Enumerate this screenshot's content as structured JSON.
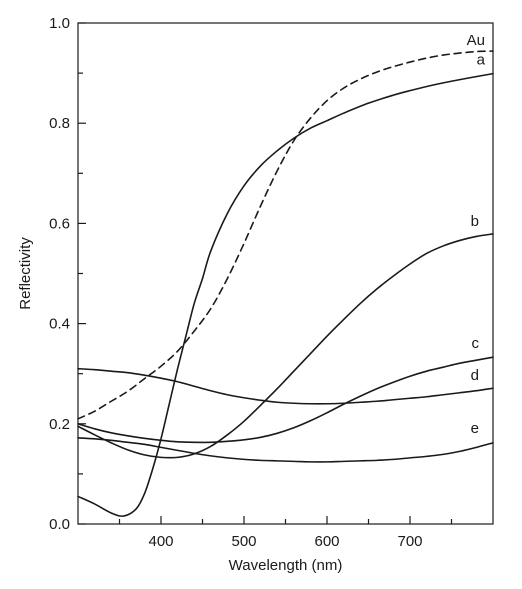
{
  "chart_data": {
    "type": "line",
    "title": "",
    "xlabel": "Wavelength (nm)",
    "ylabel": "Reflectivity",
    "xlim": [
      300,
      800
    ],
    "ylim": [
      0.0,
      1.0
    ],
    "x_ticks": [
      400,
      500,
      600,
      700
    ],
    "x_tick_labels": [
      "400",
      "500",
      "600",
      "700"
    ],
    "y_ticks": [
      0.0,
      0.2,
      0.4,
      0.6,
      0.8,
      1.0
    ],
    "y_tick_labels": [
      "0.0",
      "0.2",
      "0.4",
      "0.6",
      "0.8",
      "1.0"
    ],
    "grid": false,
    "series": [
      {
        "name": "Au",
        "style": "dashed",
        "color": "#1a1a1a",
        "x": [
          300,
          320,
          340,
          360,
          380,
          400,
          420,
          440,
          460,
          480,
          500,
          520,
          540,
          560,
          580,
          600,
          620,
          640,
          660,
          680,
          700,
          720,
          740,
          760,
          780,
          800
        ],
        "y": [
          0.21,
          0.225,
          0.245,
          0.265,
          0.29,
          0.315,
          0.345,
          0.385,
          0.43,
          0.49,
          0.56,
          0.635,
          0.705,
          0.765,
          0.81,
          0.845,
          0.87,
          0.888,
          0.902,
          0.913,
          0.922,
          0.93,
          0.936,
          0.94,
          0.943,
          0.944
        ]
      },
      {
        "name": "a",
        "style": "solid",
        "color": "#1a1a1a",
        "x": [
          300,
          320,
          340,
          355,
          370,
          380,
          390,
          400,
          410,
          420,
          430,
          440,
          450,
          460,
          480,
          500,
          520,
          540,
          560,
          580,
          600,
          620,
          650,
          680,
          700,
          730,
          760,
          800
        ],
        "y": [
          0.055,
          0.04,
          0.022,
          0.016,
          0.03,
          0.06,
          0.11,
          0.17,
          0.24,
          0.31,
          0.375,
          0.44,
          0.49,
          0.545,
          0.62,
          0.675,
          0.715,
          0.745,
          0.77,
          0.79,
          0.805,
          0.82,
          0.84,
          0.856,
          0.865,
          0.877,
          0.887,
          0.899
        ]
      },
      {
        "name": "b",
        "style": "solid",
        "color": "#1a1a1a",
        "x": [
          300,
          320,
          340,
          360,
          380,
          400,
          420,
          440,
          460,
          480,
          500,
          520,
          540,
          560,
          580,
          600,
          620,
          640,
          660,
          680,
          700,
          720,
          740,
          760,
          780,
          800
        ],
        "y": [
          0.195,
          0.178,
          0.162,
          0.148,
          0.138,
          0.133,
          0.133,
          0.14,
          0.155,
          0.178,
          0.205,
          0.237,
          0.27,
          0.305,
          0.34,
          0.375,
          0.408,
          0.44,
          0.469,
          0.495,
          0.519,
          0.54,
          0.555,
          0.566,
          0.574,
          0.579
        ]
      },
      {
        "name": "c",
        "style": "solid",
        "color": "#1a1a1a",
        "x": [
          300,
          320,
          340,
          360,
          380,
          400,
          420,
          440,
          460,
          480,
          500,
          520,
          540,
          560,
          580,
          600,
          620,
          640,
          660,
          680,
          700,
          720,
          740,
          760,
          780,
          800
        ],
        "y": [
          0.2,
          0.19,
          0.182,
          0.176,
          0.171,
          0.167,
          0.164,
          0.163,
          0.163,
          0.165,
          0.168,
          0.173,
          0.181,
          0.192,
          0.206,
          0.222,
          0.239,
          0.255,
          0.27,
          0.283,
          0.295,
          0.305,
          0.313,
          0.321,
          0.327,
          0.333
        ]
      },
      {
        "name": "d",
        "style": "solid",
        "color": "#1a1a1a",
        "x": [
          300,
          320,
          340,
          360,
          380,
          400,
          420,
          440,
          460,
          480,
          500,
          520,
          540,
          560,
          580,
          600,
          620,
          640,
          660,
          680,
          700,
          720,
          740,
          760,
          780,
          800
        ],
        "y": [
          0.31,
          0.308,
          0.305,
          0.302,
          0.297,
          0.291,
          0.284,
          0.275,
          0.266,
          0.258,
          0.252,
          0.247,
          0.243,
          0.241,
          0.24,
          0.24,
          0.241,
          0.243,
          0.245,
          0.248,
          0.251,
          0.254,
          0.258,
          0.262,
          0.266,
          0.271
        ]
      },
      {
        "name": "e",
        "style": "solid",
        "color": "#1a1a1a",
        "x": [
          300,
          320,
          340,
          360,
          380,
          400,
          420,
          440,
          460,
          480,
          500,
          520,
          540,
          560,
          580,
          600,
          620,
          640,
          660,
          680,
          700,
          720,
          740,
          760,
          780,
          800
        ],
        "y": [
          0.172,
          0.17,
          0.167,
          0.163,
          0.159,
          0.153,
          0.147,
          0.141,
          0.136,
          0.132,
          0.129,
          0.127,
          0.126,
          0.125,
          0.124,
          0.124,
          0.125,
          0.126,
          0.127,
          0.129,
          0.132,
          0.135,
          0.139,
          0.145,
          0.153,
          0.162
        ]
      }
    ],
    "series_labels": [
      "Au",
      "a",
      "b",
      "c",
      "d",
      "e"
    ]
  }
}
